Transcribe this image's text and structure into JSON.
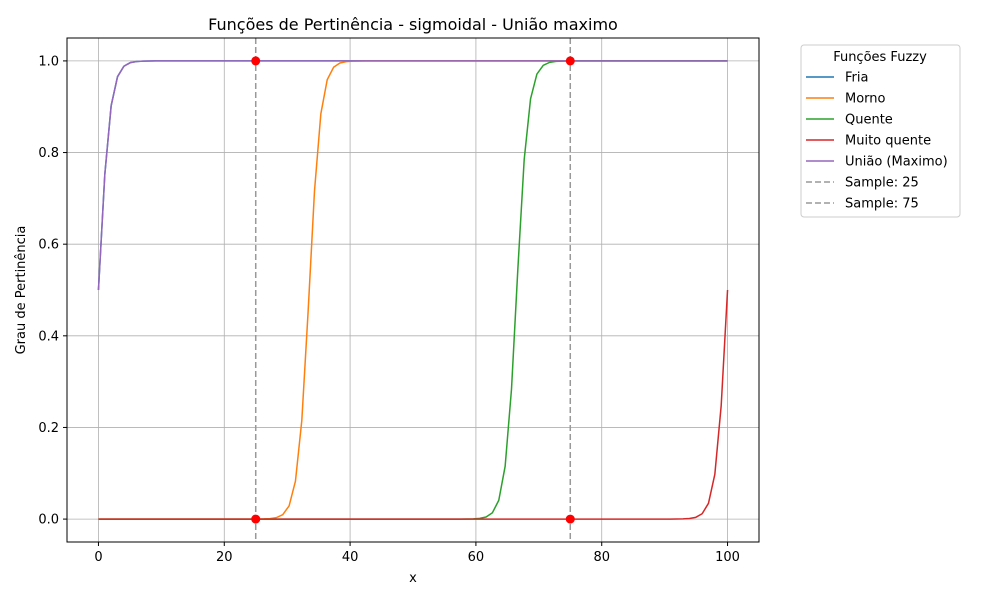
{
  "chart_data": {
    "type": "line",
    "title": "Funções de Pertinência - sigmoidal - União maximo",
    "xlabel": "x",
    "ylabel": "Grau de Pertinência",
    "xlim": [
      -5,
      105
    ],
    "ylim": [
      -0.05,
      1.05
    ],
    "xticks": [
      0,
      20,
      40,
      60,
      80,
      100
    ],
    "yticks": [
      0.0,
      0.2,
      0.4,
      0.6,
      0.8,
      1.0
    ],
    "xtick_labels": [
      "0",
      "20",
      "40",
      "60",
      "80",
      "100"
    ],
    "ytick_labels": [
      "0.0",
      "0.2",
      "0.4",
      "0.6",
      "0.8",
      "1.0"
    ],
    "grid": true,
    "legend_title": "Funções Fuzzy",
    "legend_position": "outside-right-top",
    "series": [
      {
        "name": "Fria",
        "color": "#1f77b4",
        "style": "solid",
        "kind": "sigmoid",
        "center": 0,
        "slope": 1.1
      },
      {
        "name": "Morno",
        "color": "#ff7f0e",
        "style": "solid",
        "kind": "sigmoid",
        "center": 33.5,
        "slope": 1.1
      },
      {
        "name": "Quente",
        "color": "#2ca02c",
        "style": "solid",
        "kind": "sigmoid",
        "center": 66.5,
        "slope": 1.1
      },
      {
        "name": "Muito quente",
        "color": "#d62728",
        "style": "solid",
        "kind": "sigmoid",
        "center": 100,
        "slope": 1.1
      },
      {
        "name": "União (Maximo)",
        "color": "#9467bd",
        "style": "solid",
        "kind": "max"
      }
    ],
    "samples": [
      {
        "name": "Sample: 25",
        "x": 25,
        "color": "#999999",
        "style": "dashed",
        "points": [
          0.0,
          1.0
        ]
      },
      {
        "name": "Sample: 75",
        "x": 75,
        "color": "#999999",
        "style": "dashed",
        "points": [
          0.0,
          1.0
        ]
      }
    ],
    "marker_color": "#ff0000"
  }
}
